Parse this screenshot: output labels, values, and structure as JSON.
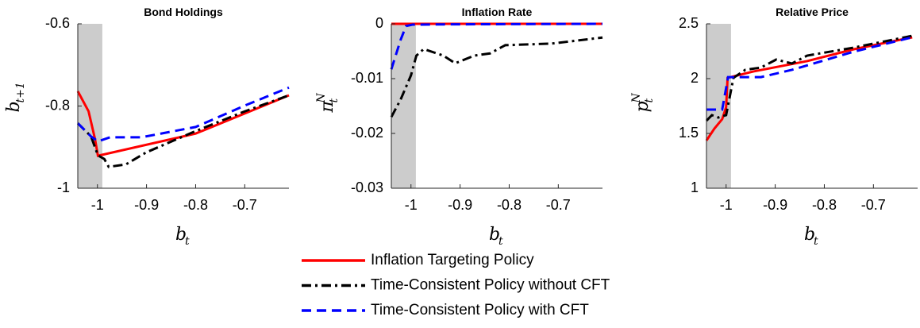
{
  "chart_data": [
    {
      "type": "line",
      "title": "Bond Holdings",
      "xlabel": {
        "text": "b",
        "sub": "t"
      },
      "ylabel": {
        "text": "b",
        "sub": "t+1"
      },
      "xlim": [
        -1.04,
        -0.61
      ],
      "xticks": [
        -1,
        -0.9,
        -0.8,
        -0.7
      ],
      "ylim": [
        -1,
        -0.6
      ],
      "yticks": [
        -1,
        -0.8,
        -0.6
      ],
      "shade": [
        -1.04,
        -0.99
      ],
      "series": [
        {
          "name": "Inflation Targeting Policy",
          "color": "#ff0000",
          "style": "solid",
          "x": [
            -1.04,
            -1.018,
            -1.005,
            -0.999,
            -0.8,
            -0.61
          ],
          "values": [
            -0.764,
            -0.813,
            -0.88,
            -0.921,
            -0.867,
            -0.774
          ]
        },
        {
          "name": "Time-Consistent Policy without CFT",
          "color": "#000000",
          "style": "dashdot",
          "x": [
            -1.04,
            -1.013,
            -0.999,
            -0.986,
            -0.977,
            -0.942,
            -0.901,
            -0.8,
            -0.7,
            -0.61
          ],
          "values": [
            -0.842,
            -0.874,
            -0.92,
            -0.929,
            -0.948,
            -0.942,
            -0.913,
            -0.861,
            -0.813,
            -0.774
          ]
        },
        {
          "name": "Time-Consistent Policy with CFT",
          "color": "#0000ff",
          "style": "dashed",
          "x": [
            -1.04,
            -1.013,
            -0.999,
            -0.974,
            -0.91,
            -0.8,
            -0.7,
            -0.61
          ],
          "values": [
            -0.842,
            -0.874,
            -0.886,
            -0.876,
            -0.876,
            -0.851,
            -0.799,
            -0.755
          ]
        }
      ]
    },
    {
      "type": "line",
      "title": "Inflation Rate",
      "xlabel": {
        "text": "b",
        "sub": "t"
      },
      "ylabel": {
        "text": "π",
        "sub": "t",
        "sup": "N"
      },
      "xlim": [
        -1.04,
        -0.61
      ],
      "xticks": [
        -1,
        -0.9,
        -0.8,
        -0.7
      ],
      "ylim": [
        -0.03,
        0
      ],
      "yticks": [
        -0.03,
        -0.02,
        -0.01,
        0
      ],
      "shade": [
        -1.04,
        -0.99
      ],
      "series": [
        {
          "color": "#ff0000",
          "style": "solid",
          "x": [
            -1.04,
            -0.61
          ],
          "values": [
            0,
            0
          ]
        },
        {
          "color": "#000000",
          "style": "dashdot",
          "x": [
            -1.04,
            -1.021,
            -1.0,
            -0.989,
            -0.974,
            -0.934,
            -0.91,
            -0.871,
            -0.839,
            -0.808,
            -0.713,
            -0.61
          ],
          "values": [
            -0.017,
            -0.0138,
            -0.0094,
            -0.0058,
            -0.0046,
            -0.0058,
            -0.0072,
            -0.0058,
            -0.0054,
            -0.0039,
            -0.0036,
            -0.0025
          ]
        },
        {
          "color": "#0000ff",
          "style": "dashed",
          "x": [
            -1.04,
            -1.021,
            -1.01,
            -0.997,
            -0.934,
            -0.61
          ],
          "values": [
            -0.0083,
            -0.0029,
            -0.0004,
            -0.00015,
            -0.0001,
            0
          ]
        }
      ]
    },
    {
      "type": "line",
      "title": "Relative Price",
      "xlabel": {
        "text": "b",
        "sub": "t"
      },
      "ylabel": {
        "text": "p",
        "sub": "t",
        "sup": "N"
      },
      "xlim": [
        -1.04,
        -0.61
      ],
      "xticks": [
        -1,
        -0.9,
        -0.8,
        -0.7
      ],
      "ylim": [
        1,
        2.5
      ],
      "yticks": [
        1,
        1.5,
        2,
        2.5
      ],
      "shade": [
        -1.04,
        -0.99
      ],
      "series": [
        {
          "color": "#ff0000",
          "style": "solid",
          "x": [
            -1.04,
            -1.024,
            -1.008,
            -1.0,
            -0.997,
            -0.945,
            -0.835,
            -0.74,
            -0.621
          ],
          "values": [
            1.435,
            1.543,
            1.63,
            1.739,
            2.007,
            2.065,
            2.16,
            2.268,
            2.377
          ]
        },
        {
          "color": "#000000",
          "style": "dashdot",
          "x": [
            -1.04,
            -1.029,
            -1.016,
            -1.0,
            -0.985,
            -0.961,
            -0.929,
            -0.898,
            -0.866,
            -0.835,
            -0.74,
            -0.621
          ],
          "values": [
            1.616,
            1.667,
            1.645,
            1.667,
            2.007,
            2.08,
            2.101,
            2.174,
            2.138,
            2.21,
            2.283,
            2.391
          ]
        },
        {
          "color": "#0000ff",
          "style": "dashed",
          "x": [
            -1.04,
            -1.008,
            -0.996,
            -0.929,
            -0.866,
            -0.74,
            -0.621
          ],
          "values": [
            1.717,
            1.717,
            2.014,
            2.014,
            2.08,
            2.246,
            2.377
          ]
        }
      ]
    }
  ]
}
